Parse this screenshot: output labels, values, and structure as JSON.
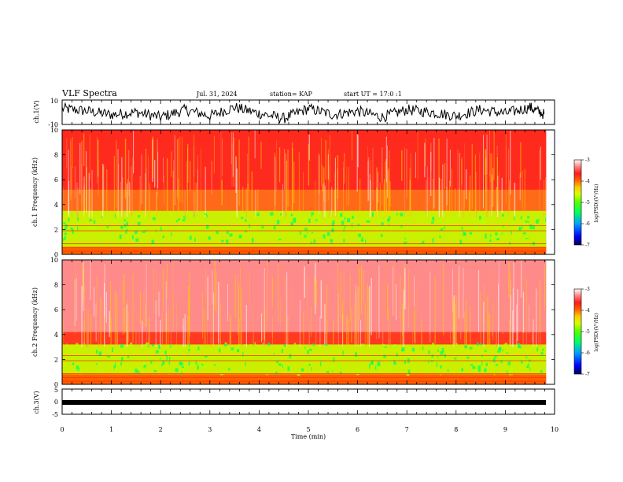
{
  "header": {
    "title": "VLF Spectra",
    "date": "Jul. 31, 2024",
    "station": "station= KAP",
    "start": "start UT = 17:0 :1"
  },
  "colors": {
    "spectrogram_scale": [
      "#000050",
      "#0000ff",
      "#00a0ff",
      "#00ff66",
      "#55ff00",
      "#d8ff00",
      "#ffc800",
      "#ff6000",
      "#ff1a1a",
      "#ff8080",
      "#ffffff"
    ]
  },
  "chart_data": [
    {
      "type": "line",
      "name": "ch1-waveform",
      "ylabel": "ch.1(V)",
      "ylim": [
        -10,
        10
      ],
      "yticks": [
        "10",
        "-10"
      ],
      "x": [
        0,
        0.5,
        1,
        1.5,
        2,
        2.5,
        3,
        3.5,
        4,
        4.5,
        5,
        5.5,
        6,
        6.5,
        7,
        7.5,
        8,
        8.5,
        9,
        9.5,
        9.8
      ],
      "y": [
        3,
        1,
        -2,
        0,
        -4,
        2,
        -3,
        4,
        -1,
        -5,
        3,
        -2,
        1,
        -4,
        2,
        0,
        -3,
        2,
        -1,
        4,
        -2
      ]
    },
    {
      "type": "heatmap",
      "name": "ch1-spectrogram",
      "ylabel": "ch.1 Frequency (kHz)",
      "ylim": [
        0,
        10
      ],
      "yticks": [
        "10",
        "8",
        "6",
        "4",
        "2",
        "0"
      ],
      "colorbar_label": "log(PSD)(V²/Hz)",
      "colorbar_range": [
        -7,
        -3
      ],
      "colorbar_ticks": [
        "-3",
        "-4",
        "-5",
        "-6",
        "-7"
      ]
    },
    {
      "type": "heatmap",
      "name": "ch2-spectrogram",
      "ylabel": "ch.2 Frequency (kHz)",
      "ylim": [
        0,
        10
      ],
      "yticks": [
        "10",
        "8",
        "6",
        "4",
        "2",
        "0"
      ],
      "colorbar_label": "log(PSD)(V²/Hz)",
      "colorbar_range": [
        -7,
        -3
      ],
      "colorbar_ticks": [
        "-3",
        "-4",
        "-5",
        "-6",
        "-7"
      ]
    },
    {
      "type": "line",
      "name": "ch3-waveform",
      "ylabel": "ch.3(V)",
      "ylim": [
        -5,
        5
      ],
      "yticks": [
        "5",
        "0",
        "-5"
      ],
      "level": -1.5
    }
  ],
  "xaxis": {
    "label": "Time (min)",
    "range": [
      0,
      10
    ],
    "ticks": [
      "0",
      "1",
      "2",
      "3",
      "4",
      "5",
      "6",
      "7",
      "8",
      "9",
      "10"
    ]
  }
}
